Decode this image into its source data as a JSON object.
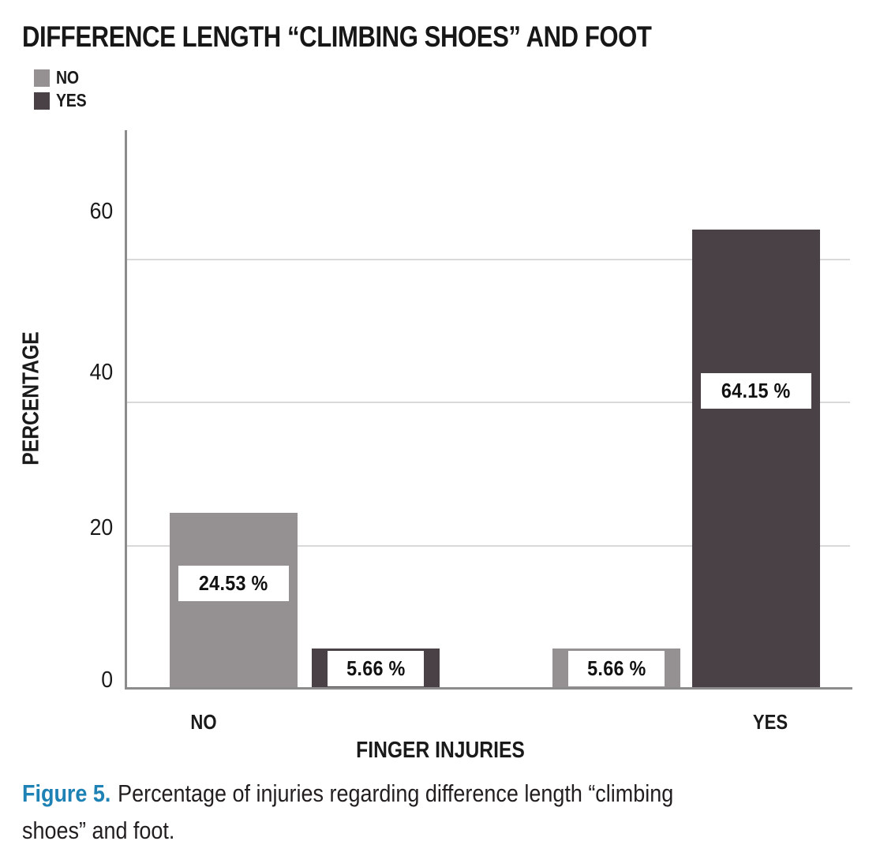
{
  "figure": {
    "caption": {
      "label": "Figure 5.",
      "line1": "Percentage of injuries regarding difference length “climbing",
      "line2": "shoes” and foot."
    }
  },
  "chart_data": {
    "type": "bar",
    "title": "DIFFERENCE LENGTH “CLIMBING SHOES” AND FOOT",
    "xlabel": "FINGER INJURIES",
    "ylabel": "PERCENTAGE",
    "categories": [
      "NO",
      "YES"
    ],
    "series": [
      {
        "name": "NO",
        "color": "#959091",
        "values": [
          24.53,
          5.66
        ],
        "labels": [
          "24.53 %",
          "5.66 %"
        ]
      },
      {
        "name": "YES",
        "color": "#4a4147",
        "values": [
          5.66,
          64.15
        ],
        "labels": [
          "5.66 %",
          "64.15 %"
        ]
      }
    ],
    "yticks": [
      0,
      20,
      40,
      60
    ],
    "ylim": [
      0,
      78
    ],
    "grid": true,
    "gridline_values": [
      20,
      40,
      60
    ],
    "legend_position": "top-left",
    "colors": {
      "axis": "#8c8c8c",
      "gridline": "#d9d9d9",
      "text": "#1a1a1a",
      "caption_accent": "#1e82b4"
    }
  }
}
